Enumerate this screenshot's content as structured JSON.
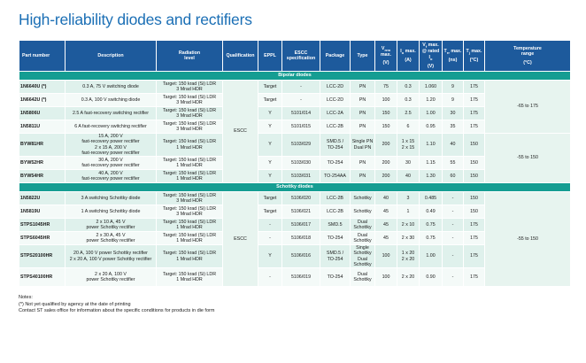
{
  "title": "High-reliability diodes and rectifiers",
  "headers": {
    "part_number": "Part number",
    "description": "Description",
    "radiation_1": "Radiation",
    "radiation_2": "level",
    "qualification": "Qualification",
    "eppl": "EPPL",
    "escc_1": "ESCC",
    "escc_2": "specification",
    "package": "Package",
    "type": "Type",
    "vrrm": "V",
    "vrrm_sub": "rrm",
    "vrrm_suffix": " max.",
    "vrrm_unit": "(V)",
    "io": "I",
    "io_sub": "o",
    "io_suffix": " max.",
    "io_unit": "(A)",
    "vf_1": "V",
    "vf_1_sub": "f",
    "vf_1_suffix": " max.",
    "vf_2": "@ rated I",
    "vf_2_sub": "o",
    "vf_unit": "(V)",
    "trr": "T",
    "trr_sub": "rr",
    "trr_suffix": " max.",
    "trr_unit": "(ns)",
    "tj": "T",
    "tj_sub": "j",
    "tj_suffix": " max.",
    "tj_unit": "(°C)",
    "temp_1": "Temperature",
    "temp_2": "range",
    "temp_unit": "(°C)"
  },
  "sections": {
    "bipolar": "Bipolar diodes",
    "schottky": "Schottky diodes"
  },
  "qualification_merged": "ESCC",
  "temp_bipolar_1": "-65 to 175",
  "temp_bipolar_2": "-55 to 150",
  "temp_schottky": "-55 to 150",
  "bipolar_rows": [
    {
      "part": "1N6640U (*)",
      "desc": "0.3 A, 75 V switching diode",
      "rad_1": "Target: 150 krad (Si) LDR",
      "rad_2": "3 Mrad HDR",
      "eppl": "Target",
      "escc": "-",
      "pkg": "LCC-2D",
      "type": "PN",
      "vrrm": "75",
      "io": "0.3",
      "vf": "1.060",
      "trr": "9",
      "tj": "175"
    },
    {
      "part": "1N6642U (*)",
      "desc": "0.3 A, 100 V switching diode",
      "rad_1": "Target: 150 krad (Si) LDR",
      "rad_2": "3 Mrad HDR",
      "eppl": "Target",
      "escc": "-",
      "pkg": "LCC-2D",
      "type": "PN",
      "vrrm": "100",
      "io": "0.3",
      "vf": "1.20",
      "trr": "9",
      "tj": "175"
    },
    {
      "part": "1N5806U",
      "desc": "2.5 A fast-recovery switching rectifier",
      "rad_1": "Target: 150 krad (Si) LDR",
      "rad_2": "3 Mrad HDR",
      "eppl": "Y",
      "escc": "5101/014",
      "pkg": "LCC-2A",
      "type": "PN",
      "vrrm": "150",
      "io": "2.5",
      "vf": "1.00",
      "trr": "30",
      "tj": "175"
    },
    {
      "part": "1N5811U",
      "desc": "6 A fast-recovery switching rectifier",
      "rad_1": "Target: 150 krad (Si) LDR",
      "rad_2": "3 Mrad HDR",
      "eppl": "Y",
      "escc": "5101/015",
      "pkg": "LCC-2B",
      "type": "PN",
      "vrrm": "150",
      "io": "6",
      "vf": "0.95",
      "trr": "35",
      "tj": "175"
    },
    {
      "part": "BYW81HR",
      "desc_1": "15 A, 200 V",
      "desc_2": "fast-recovery power rectifier",
      "desc_3": "2 x 15 A, 200 V",
      "desc_4": "fast-recovery power rectifier",
      "rad_1": "Target: 150 krad (Si) LDR",
      "rad_2": "1 Mrad HDR",
      "eppl": "Y",
      "escc": "5103/029",
      "pkg_1": "SMD.5 /",
      "pkg_2": "TO-254",
      "type_1": "Single PN",
      "type_2": "Dual PN",
      "vrrm": "200",
      "io_1": "1 x 15",
      "io_2": "2 x 15",
      "vf": "1.10",
      "trr": "40",
      "tj": "150"
    },
    {
      "part": "BYW52HR",
      "desc_1": "30 A, 200 V",
      "desc_2": "fast-recovery power rectifier",
      "rad_1": "Target: 150 krad (Si) LDR",
      "rad_2": "1 Mrad HDR",
      "eppl": "Y",
      "escc": "5103/030",
      "pkg": "TO-254",
      "type": "PN",
      "vrrm": "200",
      "io": "30",
      "vf": "1.15",
      "trr": "55",
      "tj": "150"
    },
    {
      "part": "BYW54HR",
      "desc_1": "40 A, 200 V",
      "desc_2": "fast-recovery power rectifier",
      "rad_1": "Target: 150 krad (Si) LDR",
      "rad_2": "1 Mrad HDR",
      "eppl": "Y",
      "escc": "5103/031",
      "pkg": "TO-254AA",
      "type": "PN",
      "vrrm": "200",
      "io": "40",
      "vf": "1.30",
      "trr": "60",
      "tj": "150"
    }
  ],
  "schottky_rows": [
    {
      "part": "1N5822U",
      "desc": "3 A switching Schottky diode",
      "rad_1": "Target: 150 krad (Si) LDR",
      "rad_2": "3 Mrad HDR",
      "eppl": "Target",
      "escc": "5106/020",
      "pkg": "LCC-2B",
      "type": "Schottky",
      "vrrm": "40",
      "io": "3",
      "vf": "0.485",
      "trr": "-",
      "tj": "150"
    },
    {
      "part": "1N5819U",
      "desc": "1 A switching Schottky diode",
      "rad_1": "Target: 150 krad (Si) LDR",
      "rad_2": "3 Mrad HDR",
      "eppl": "Target",
      "escc": "5106/021",
      "pkg": "LCC-2B",
      "type": "Schottky",
      "vrrm": "45",
      "io": "1",
      "vf": "0.49",
      "trr": "-",
      "tj": "150"
    },
    {
      "part": "STPS1045HR",
      "desc_1": "2 x 10 A, 45 V",
      "desc_2": "power Schottky rectifier",
      "rad_1": "Target: 150 krad (Si) LDR",
      "rad_2": "1 Mrad HDR",
      "eppl": "-",
      "escc": "5106/017",
      "pkg": "SMD.5",
      "type_1": "Dual",
      "type_2": "Schottky",
      "vrrm": "45",
      "io": "2 x 10",
      "vf": "0.75",
      "trr": "-",
      "tj": "175"
    },
    {
      "part": "STPS6045HR",
      "desc_1": "2 x 30 A, 45 V",
      "desc_2": "power Schottky rectifier",
      "rad_1": "Target: 150 krad (Si) LDR",
      "rad_2": "1 Mrad HDR",
      "eppl": "-",
      "escc": "5106/018",
      "pkg": "TO-254",
      "type_1": "Dual",
      "type_2": "Schottky",
      "vrrm": "45",
      "io": "2 x 30",
      "vf": "0.75",
      "trr": "-",
      "tj": "175"
    },
    {
      "part": "STPS20100HR",
      "desc_1": "20 A, 100 V power Schottky rectifier",
      "desc_2": "2 x 20 A, 100 V power Schottky rectifier",
      "rad_1": "Target: 150 krad (Si) LDR",
      "rad_2": "1 Mrad HDR",
      "eppl": "Y",
      "escc": "5106/016",
      "pkg_1": "SMD.5 /",
      "pkg_2": "TO-254",
      "type_1": "Single",
      "type_2": "Schottky",
      "type_3": "Dual",
      "type_4": "Schottky",
      "vrrm": "100",
      "io_1": "1 x 20",
      "io_2": "2 x 20",
      "vf": "1.00",
      "trr": "-",
      "tj": "175"
    },
    {
      "part": "STPS40100HR",
      "desc_1": "2 x 20 A, 100 V",
      "desc_2": "power Schottky rectifier",
      "rad_1": "Target: 150 krad (Si) LDR",
      "rad_2": "1 Mrad HDR",
      "eppl": "-",
      "escc": "5106/019",
      "pkg": "TO-254",
      "type_1": "Dual",
      "type_2": "Schottky",
      "vrrm": "100",
      "io": "2 x 20",
      "vf": "0.90",
      "trr": "-",
      "tj": "175"
    }
  ],
  "notes": {
    "heading": "Notes:",
    "line_1": "(*) Not yet qualified by agency at the date of printing",
    "line_2": "Contact ST sales office for information about the specific conditions for products in die form"
  }
}
